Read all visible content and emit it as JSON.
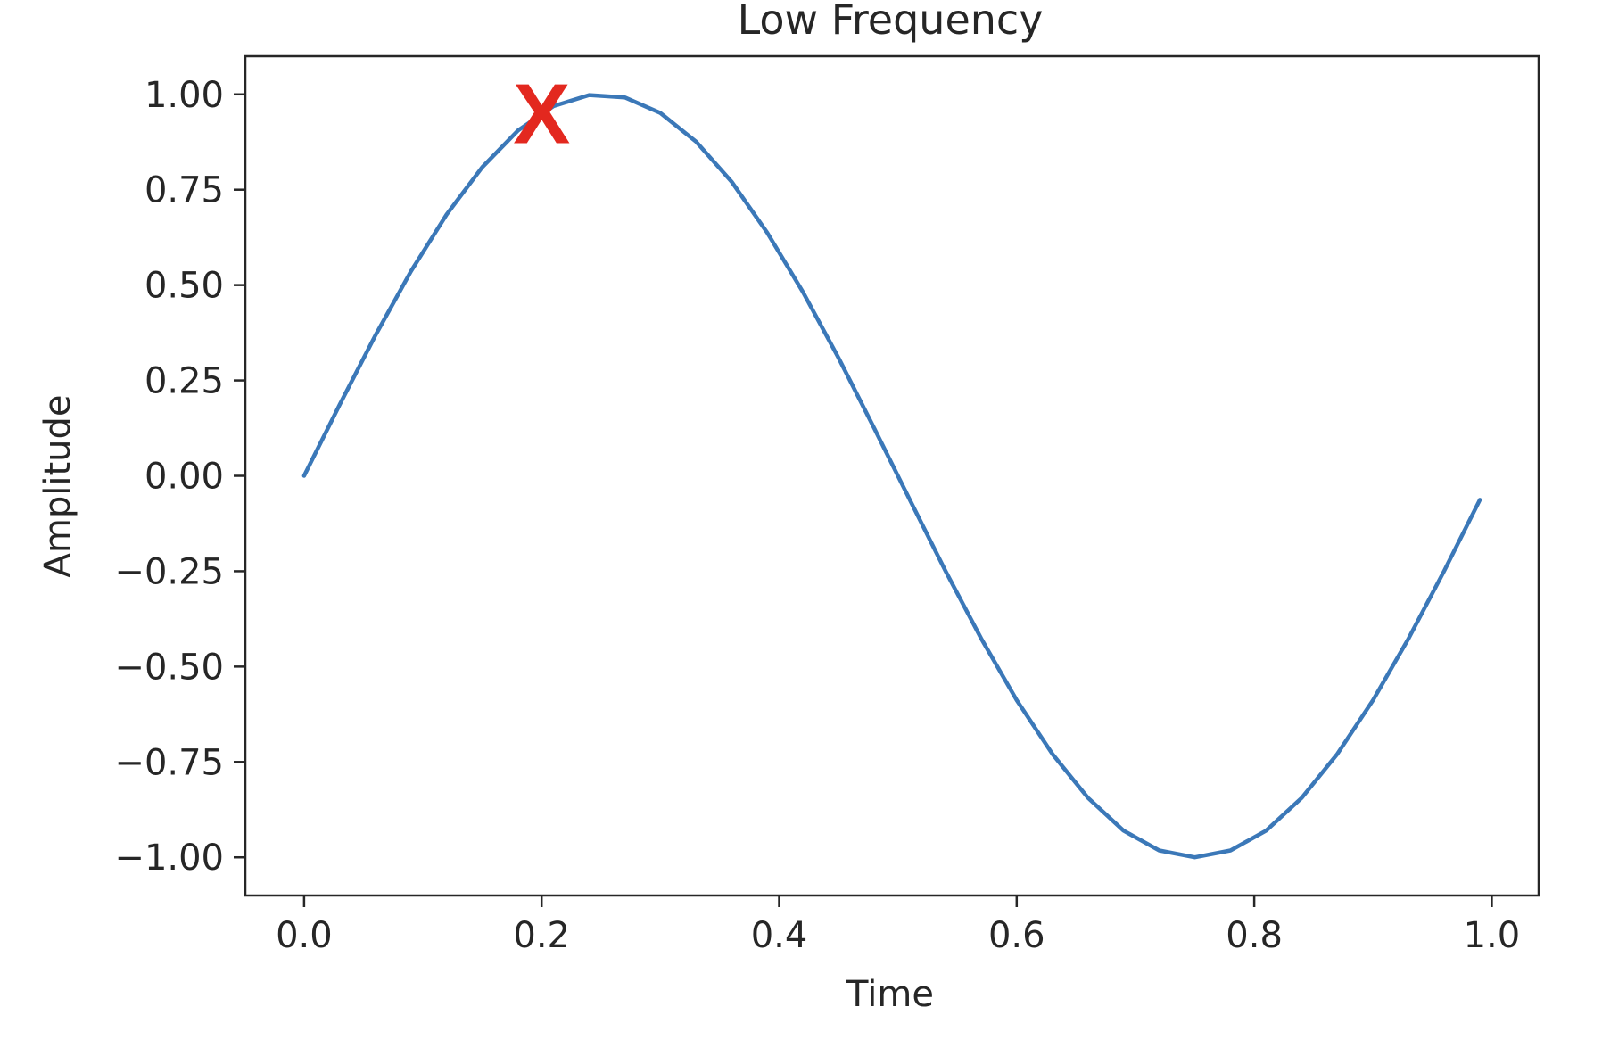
{
  "chart_data": {
    "type": "line",
    "title": "Low Frequency",
    "xlabel": "Time",
    "ylabel": "Amplitude",
    "xlim": [
      -0.0495,
      1.0395
    ],
    "ylim": [
      -1.1,
      1.1
    ],
    "x_ticks": [
      {
        "value": 0.0,
        "label": "0.0"
      },
      {
        "value": 0.2,
        "label": "0.2"
      },
      {
        "value": 0.4,
        "label": "0.4"
      },
      {
        "value": 0.6,
        "label": "0.6"
      },
      {
        "value": 0.8,
        "label": "0.8"
      },
      {
        "value": 1.0,
        "label": "1.0"
      }
    ],
    "y_ticks": [
      {
        "value": 1.0,
        "label": "1.00"
      },
      {
        "value": 0.75,
        "label": "0.75"
      },
      {
        "value": 0.5,
        "label": "0.50"
      },
      {
        "value": 0.25,
        "label": "0.25"
      },
      {
        "value": 0.0,
        "label": "0.00"
      },
      {
        "value": -0.25,
        "label": "−0.25"
      },
      {
        "value": -0.5,
        "label": "−0.50"
      },
      {
        "value": -0.75,
        "label": "−0.75"
      },
      {
        "value": -1.0,
        "label": "−1.00"
      }
    ],
    "grid": false,
    "series": [
      {
        "color": "#3b78b8",
        "x": [
          0.0,
          0.03,
          0.06,
          0.09,
          0.12,
          0.15,
          0.18,
          0.21,
          0.24,
          0.27,
          0.3,
          0.33,
          0.36,
          0.39,
          0.42,
          0.45,
          0.48,
          0.51,
          0.54,
          0.57,
          0.6,
          0.63,
          0.66,
          0.69,
          0.72,
          0.75,
          0.78,
          0.81,
          0.84,
          0.87,
          0.9,
          0.93,
          0.96,
          0.99
        ],
        "y": [
          0.0,
          0.187,
          0.368,
          0.536,
          0.685,
          0.809,
          0.905,
          0.969,
          0.998,
          0.992,
          0.951,
          0.876,
          0.771,
          0.637,
          0.482,
          0.309,
          0.125,
          -0.063,
          -0.249,
          -0.426,
          -0.588,
          -0.729,
          -0.844,
          -0.93,
          -0.982,
          -1.0,
          -0.982,
          -0.93,
          -0.844,
          -0.729,
          -0.588,
          -0.426,
          -0.249,
          -0.063
        ]
      }
    ],
    "annotations": [
      {
        "text": "X",
        "x": 0.2,
        "y": 0.951,
        "color": "#e3281f"
      }
    ]
  }
}
